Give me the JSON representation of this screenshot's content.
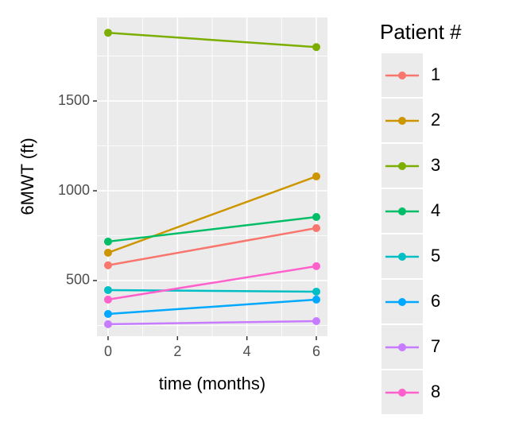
{
  "chart_data": {
    "type": "line",
    "x_label": "time (months)",
    "y_label": "6MWT (ft)",
    "x": [
      0,
      6
    ],
    "series": [
      {
        "name": "1",
        "color": "#F8766D",
        "values": [
          585,
          792
        ]
      },
      {
        "name": "2",
        "color": "#CD9600",
        "values": [
          655,
          1080
        ]
      },
      {
        "name": "3",
        "color": "#7CAE00",
        "values": [
          1880,
          1800
        ]
      },
      {
        "name": "4",
        "color": "#00BE67",
        "values": [
          717,
          854
        ]
      },
      {
        "name": "5",
        "color": "#00BFC4",
        "values": [
          447,
          438
        ]
      },
      {
        "name": "6",
        "color": "#00A9FF",
        "values": [
          314,
          394
        ]
      },
      {
        "name": "7",
        "color": "#C77CFF",
        "values": [
          257,
          274
        ]
      },
      {
        "name": "8",
        "color": "#FF61CC",
        "values": [
          394,
          580
        ]
      }
    ],
    "legend_title": "Patient #",
    "xlim": [
      -0.32,
      6.32
    ],
    "xticks": [
      0,
      2,
      4,
      6
    ],
    "ylim": [
      190,
      1965
    ],
    "yticks": [
      500,
      1000,
      1500
    ],
    "grid": true
  }
}
